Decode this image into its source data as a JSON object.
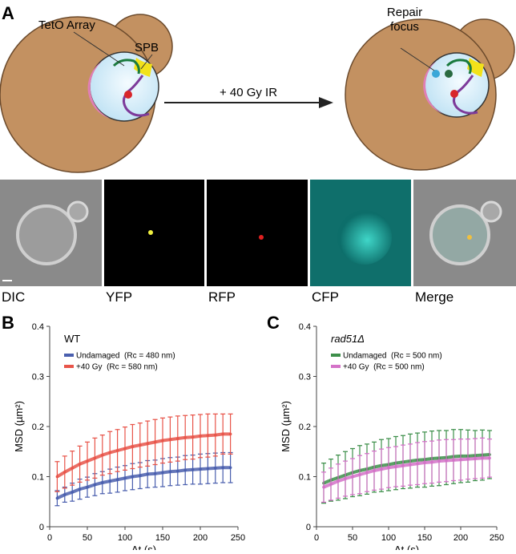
{
  "panel_labels": [
    "A",
    "B",
    "C"
  ],
  "diagram": {
    "tetO": "TetO Array",
    "spb": "SPB",
    "treatment": "+ 40 Gy IR",
    "repair": [
      "Repair",
      "focus"
    ]
  },
  "micrographs": [
    "DIC",
    "YFP",
    "RFP",
    "CFP",
    "Merge"
  ],
  "chart_data": [
    {
      "type": "line",
      "legend_title": "WT",
      "xlabel": "Δt (s)",
      "ylabel": "MSD (µm²)",
      "xlim": [
        0,
        250
      ],
      "ylim": [
        0,
        0.4
      ],
      "xticks": [
        0,
        50,
        100,
        150,
        200,
        250
      ],
      "yticks": [
        0,
        0.1,
        0.2,
        0.3,
        0.4
      ],
      "x": [
        10,
        20,
        30,
        40,
        50,
        60,
        70,
        80,
        90,
        100,
        110,
        120,
        130,
        140,
        150,
        160,
        170,
        180,
        190,
        200,
        210,
        220,
        230,
        240
      ],
      "series": [
        {
          "name": "Undamaged  (Rc = 480 nm)",
          "color": "#4a5fae",
          "values": [
            0.057,
            0.064,
            0.069,
            0.075,
            0.079,
            0.084,
            0.088,
            0.091,
            0.094,
            0.097,
            0.1,
            0.102,
            0.105,
            0.106,
            0.108,
            0.11,
            0.111,
            0.113,
            0.114,
            0.115,
            0.116,
            0.117,
            0.118,
            0.118
          ],
          "errors": [
            0.015,
            0.015,
            0.018,
            0.02,
            0.02,
            0.022,
            0.022,
            0.024,
            0.025,
            0.025,
            0.026,
            0.026,
            0.027,
            0.027,
            0.028,
            0.028,
            0.028,
            0.029,
            0.029,
            0.03,
            0.03,
            0.03,
            0.03,
            0.03
          ]
        },
        {
          "name": "+40 Gy  (Rc = 580 nm)",
          "color": "#e8554a",
          "values": [
            0.1,
            0.109,
            0.117,
            0.125,
            0.131,
            0.137,
            0.143,
            0.148,
            0.152,
            0.156,
            0.16,
            0.163,
            0.166,
            0.169,
            0.172,
            0.174,
            0.176,
            0.178,
            0.179,
            0.181,
            0.182,
            0.183,
            0.185,
            0.185
          ],
          "errors": [
            0.03,
            0.032,
            0.034,
            0.036,
            0.038,
            0.04,
            0.04,
            0.042,
            0.042,
            0.043,
            0.044,
            0.044,
            0.045,
            0.045,
            0.045,
            0.045,
            0.045,
            0.044,
            0.044,
            0.043,
            0.043,
            0.042,
            0.04,
            0.04
          ]
        }
      ]
    },
    {
      "type": "line",
      "legend_title": "rad51Δ",
      "xlabel": "Δt (s)",
      "ylabel": "MSD (µm²)",
      "xlim": [
        0,
        250
      ],
      "ylim": [
        0,
        0.4
      ],
      "xticks": [
        0,
        50,
        100,
        150,
        200,
        250
      ],
      "yticks": [
        0,
        0.1,
        0.2,
        0.3,
        0.4
      ],
      "x": [
        10,
        20,
        30,
        40,
        50,
        60,
        70,
        80,
        90,
        100,
        110,
        120,
        130,
        140,
        150,
        160,
        170,
        180,
        190,
        200,
        210,
        220,
        230,
        240
      ],
      "series": [
        {
          "name": "Undamaged  (Rc = 500 nm)",
          "color": "#3d8f4a",
          "values": [
            0.087,
            0.093,
            0.098,
            0.103,
            0.108,
            0.112,
            0.115,
            0.119,
            0.122,
            0.124,
            0.127,
            0.129,
            0.131,
            0.133,
            0.134,
            0.136,
            0.137,
            0.138,
            0.14,
            0.141,
            0.141,
            0.142,
            0.143,
            0.144
          ],
          "errors": [
            0.04,
            0.042,
            0.045,
            0.047,
            0.048,
            0.05,
            0.05,
            0.05,
            0.052,
            0.052,
            0.053,
            0.053,
            0.054,
            0.054,
            0.055,
            0.055,
            0.055,
            0.054,
            0.054,
            0.053,
            0.052,
            0.05,
            0.05,
            0.048
          ]
        },
        {
          "name": "+40 Gy  (Rc = 500 nm)",
          "color": "#d472c8",
          "values": [
            0.079,
            0.085,
            0.091,
            0.096,
            0.1,
            0.104,
            0.108,
            0.112,
            0.115,
            0.118,
            0.12,
            0.122,
            0.124,
            0.126,
            0.128,
            0.129,
            0.131,
            0.132,
            0.133,
            0.134,
            0.135,
            0.136,
            0.137,
            0.137
          ],
          "errors": [
            0.03,
            0.032,
            0.034,
            0.035,
            0.036,
            0.038,
            0.038,
            0.039,
            0.04,
            0.04,
            0.04,
            0.041,
            0.041,
            0.042,
            0.042,
            0.042,
            0.042,
            0.042,
            0.041,
            0.041,
            0.04,
            0.04,
            0.04,
            0.038
          ]
        }
      ]
    }
  ]
}
